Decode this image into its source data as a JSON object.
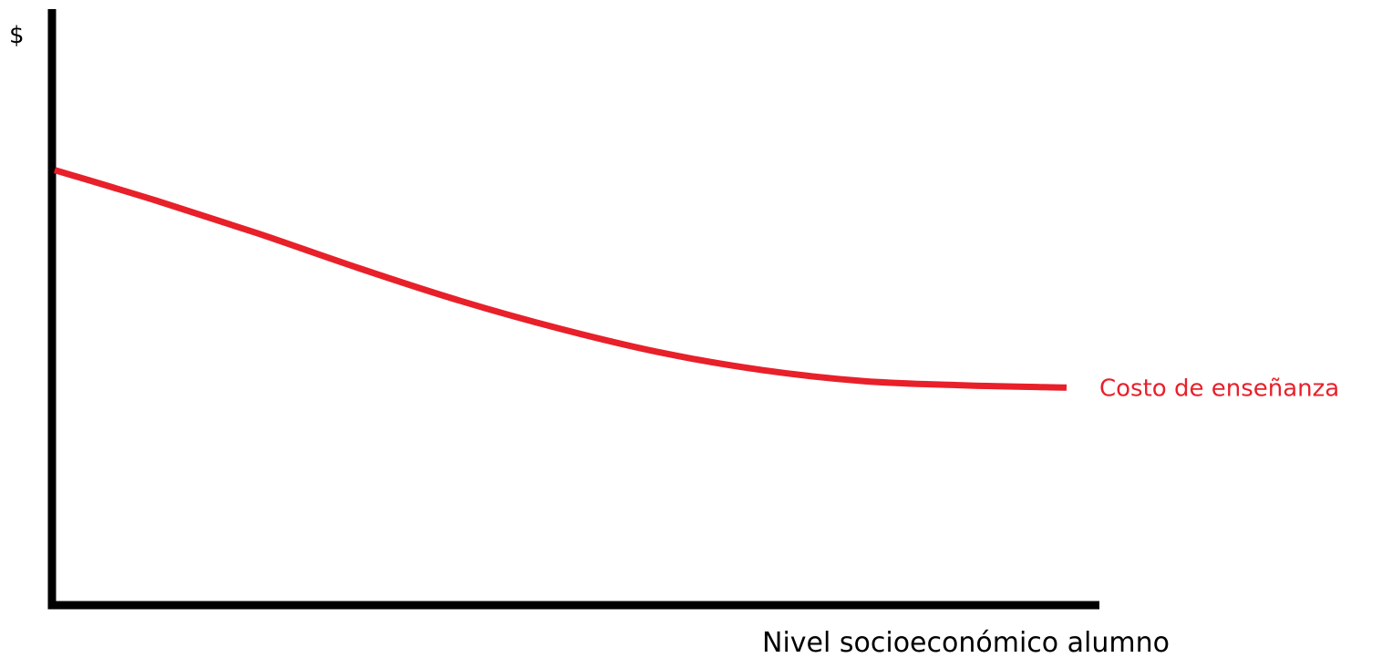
{
  "chart_data": {
    "type": "line",
    "title": "",
    "xlabel": "Nivel socioeconómico alumno",
    "ylabel": "$",
    "grid": false,
    "legend": "none",
    "series": [
      {
        "name": "Costo de enseñanza",
        "color": "#e8202a",
        "x": [
          0,
          0.1,
          0.2,
          0.3,
          0.4,
          0.5,
          0.6,
          0.7,
          0.8,
          0.9,
          1.0
        ],
        "values": [
          1.0,
          0.93,
          0.855,
          0.775,
          0.7,
          0.635,
          0.58,
          0.54,
          0.515,
          0.505,
          0.5
        ]
      }
    ],
    "xlim": [
      0,
      1.04
    ],
    "ylim": [
      0,
      1.37
    ]
  }
}
